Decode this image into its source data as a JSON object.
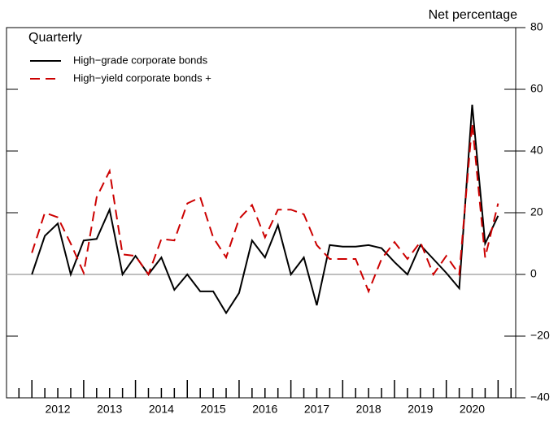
{
  "chart_data": {
    "type": "line",
    "title": "Quarterly",
    "y_axis_label": "Net percentage",
    "x": [
      2012,
      2012.25,
      2012.5,
      2012.75,
      2013,
      2013.25,
      2013.5,
      2013.75,
      2014,
      2014.25,
      2014.5,
      2014.75,
      2015,
      2015.25,
      2015.5,
      2015.75,
      2016,
      2016.25,
      2016.5,
      2016.75,
      2017,
      2017.25,
      2017.5,
      2017.75,
      2018,
      2018.25,
      2018.5,
      2018.75,
      2019,
      2019.25,
      2019.5,
      2019.75,
      2020,
      2020.25,
      2020.5,
      2020.75,
      2021
    ],
    "series": [
      {
        "name": "High−grade corporate bonds",
        "color": "#000000",
        "dash": "solid",
        "values": [
          0,
          12.5,
          16.5,
          0,
          11,
          11.5,
          21,
          0,
          6,
          0,
          5.5,
          -5,
          0,
          -5.5,
          -5.5,
          -12.5,
          -6,
          11,
          5.5,
          16,
          0,
          5.5,
          -10,
          9.5,
          9,
          9,
          9.5,
          8.5,
          4,
          0,
          9.5,
          5,
          0.5,
          -4.5,
          55,
          10,
          19
        ]
      },
      {
        "name": "High−yield corporate bonds +",
        "color": "#cc0000",
        "dash": "dashed",
        "values": [
          7,
          20,
          18.5,
          10,
          0.5,
          25,
          33.5,
          6.5,
          6,
          0,
          11.5,
          11,
          23,
          25,
          12,
          5.5,
          18,
          22.5,
          12,
          21,
          21,
          19.5,
          9.5,
          5,
          5,
          5,
          -5.5,
          5,
          10.5,
          5,
          10.5,
          0,
          6,
          0,
          49,
          5.5,
          23
        ]
      }
    ],
    "xlim": [
      2011.51,
      2021.34
    ],
    "xticks": [
      {
        "value": 2012.5,
        "label": "2012"
      },
      {
        "value": 2013.5,
        "label": "2013"
      },
      {
        "value": 2014.5,
        "label": "2014"
      },
      {
        "value": 2015.5,
        "label": "2015"
      },
      {
        "value": 2016.5,
        "label": "2016"
      },
      {
        "value": 2017.5,
        "label": "2017"
      },
      {
        "value": 2018.5,
        "label": "2018"
      },
      {
        "value": 2019.5,
        "label": "2019"
      },
      {
        "value": 2020.5,
        "label": "2020"
      }
    ],
    "ylim": [
      -40,
      80
    ],
    "yticks": [
      {
        "value": -40,
        "label": "−40"
      },
      {
        "value": -20,
        "label": "−20"
      },
      0,
      20,
      40,
      60,
      80
    ],
    "zero_line_color": "#aaaaaa"
  }
}
